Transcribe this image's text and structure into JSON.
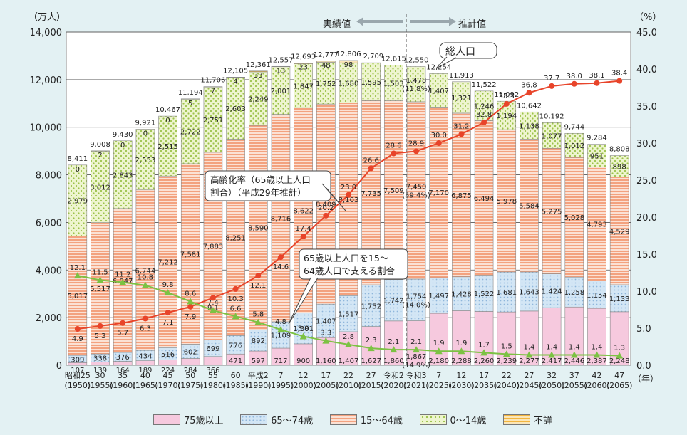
{
  "chart_data": {
    "type": "bar",
    "left_axis_unit": "（万人）",
    "right_axis_unit": "（%）",
    "year_suffix": "（年）",
    "ylim_left": [
      0,
      14000
    ],
    "ylim_right": [
      0,
      45
    ],
    "left_ticks": [
      "0",
      "2,000",
      "4,000",
      "6,000",
      "8,000",
      "10,000",
      "12,000",
      "14,000"
    ],
    "right_ticks": [
      "0.0",
      "5.0",
      "10.0",
      "15.0",
      "20.0",
      "25.0",
      "30.0",
      "35.0",
      "40.0",
      "45.0"
    ],
    "categories": [
      "昭和25",
      "30",
      "35",
      "40",
      "45",
      "50",
      "55",
      "60",
      "平成2",
      "7",
      "12",
      "17",
      "22",
      "27",
      "令和2",
      "令和3",
      "7",
      "12",
      "17",
      "22",
      "27",
      "32",
      "37",
      "42",
      "47"
    ],
    "years": [
      "(1950)",
      "(1955)",
      "(1960)",
      "(1965)",
      "(1970)",
      "(1975)",
      "(1980)",
      "(1985)",
      "(1990)",
      "(1995)",
      "(2000)",
      "(2005)",
      "(2010)",
      "(2015)",
      "(2020)",
      "(2021)",
      "(2025)",
      "(2030)",
      "(2035)",
      "(2040)",
      "(2045)",
      "(2050)",
      "(2055)",
      "(2060)",
      "(2065)"
    ],
    "series": [
      {
        "name": "75歳以上",
        "color": "#f4bfd8",
        "values": [
          107,
          139,
          164,
          189,
          224,
          284,
          366,
          471,
          597,
          717,
          900,
          1160,
          1407,
          1627,
          1860,
          1867,
          2180,
          2288,
          2260,
          2239,
          2277,
          2417,
          2446,
          2387,
          2248
        ],
        "labels": [
          "107",
          "139",
          "164",
          "189",
          "224",
          "284",
          "366",
          "471",
          "597",
          "717",
          "900",
          "1,160",
          "1,407",
          "1,627",
          "1,860",
          "1,867\n(14.9%)",
          "2,180",
          "2,288",
          "2,260",
          "2,239",
          "2,277",
          "2,417",
          "2,446",
          "2,387",
          "2,248"
        ]
      },
      {
        "name": "65～74歳",
        "color": "#c3dcf0",
        "values": [
          309,
          338,
          376,
          434,
          516,
          602,
          699,
          776,
          892,
          1109,
          1301,
          1407,
          1517,
          1752,
          1742,
          1754,
          1497,
          1428,
          1522,
          1681,
          1643,
          1424,
          1258,
          1154,
          1133
        ],
        "labels": [
          "309",
          "338",
          "376",
          "434",
          "516",
          "602",
          "699",
          "776",
          "892",
          "1,109",
          "1,301",
          "1,407",
          "1,517",
          "1,752",
          "1,742",
          "1,754\n(14.0%)",
          "1,497",
          "1,428",
          "1,522",
          "1,681",
          "1,643",
          "1,424",
          "1,258",
          "1,154",
          "1,133"
        ]
      },
      {
        "name": "15～64歳",
        "color": "#f6b49a",
        "values": [
          5017,
          5517,
          6047,
          6744,
          7212,
          7581,
          7883,
          8251,
          8590,
          8716,
          8622,
          8409,
          8103,
          7735,
          7509,
          7450,
          7170,
          6875,
          6494,
          5978,
          5584,
          5275,
          5028,
          4793,
          4529
        ],
        "labels": [
          "5,017",
          "5,517",
          "6,047",
          "6,744",
          "7,212",
          "7,581",
          "7,883",
          "8,251",
          "8,590",
          "8,716",
          "8,622",
          "8,409",
          "8,103",
          "7,735",
          "7,509",
          "7,450\n(59.4%)",
          "7,170",
          "6,875",
          "6,494",
          "5,978",
          "5,584",
          "5,275",
          "5,028",
          "4,793",
          "4,529"
        ]
      },
      {
        "name": "0～14歳",
        "color": "#dcebb2",
        "values": [
          2979,
          3012,
          2843,
          2553,
          2515,
          2722,
          2751,
          2603,
          2249,
          2001,
          1847,
          1752,
          1680,
          1595,
          1503,
          1478,
          1407,
          1321,
          1246,
          1194,
          1138,
          1077,
          1012,
          951,
          898
        ],
        "labels": [
          "2,979",
          "3,012",
          "2,843",
          "2,553",
          "2,515",
          "2,722",
          "2,751",
          "2,603",
          "2,249",
          "2,001",
          "1,847",
          "1,752",
          "1,680",
          "1,595",
          "1,503",
          "1,478\n(11.8%)",
          "1,407",
          "1,321",
          "1,246",
          "1,194",
          "1,138",
          "1,077",
          "1,012",
          "951",
          "898"
        ]
      },
      {
        "name": "不詳",
        "color": "#f7d27e",
        "values": [
          0,
          2,
          0,
          0,
          0,
          5,
          7,
          4,
          33,
          13,
          23,
          48,
          98,
          0,
          0,
          0,
          0,
          0,
          0,
          0,
          0,
          0,
          0,
          0,
          0
        ],
        "labels": [
          "0",
          "2",
          "0",
          "0",
          "0",
          "5",
          "7",
          "4",
          "33",
          "13",
          "23",
          "48",
          "98",
          "",
          "",
          "",
          "",
          "",
          "",
          "",
          "",
          "",
          "",
          "",
          ""
        ]
      }
    ],
    "total_labels": [
      "8,411",
      "9,008",
      "9,430",
      "9,921",
      "10,467",
      "11,194",
      "11,706",
      "12,105",
      "12,361",
      "12,557",
      "12,693",
      "12,777",
      "12,806",
      "12,709",
      "12,615",
      "12,550",
      "12,254",
      "11,913",
      "11,522",
      "11,092",
      "10,642",
      "10,192",
      "9,744",
      "9,284",
      "8,808"
    ],
    "lines": [
      {
        "name": "高齢化率（65歳以上人口割合）（平成29年推計）",
        "color": "#e8442a",
        "values": [
          4.9,
          5.3,
          5.7,
          6.3,
          7.1,
          7.9,
          9.1,
          10.3,
          12.1,
          14.6,
          17.4,
          20.2,
          23.0,
          26.6,
          28.6,
          28.9,
          30.0,
          31.2,
          32.8,
          35.3,
          36.8,
          37.7,
          38.0,
          38.1,
          38.4
        ],
        "labels": [
          "4.9",
          "5.3",
          "5.7",
          "6.3",
          "7.1",
          "7.9",
          "9.1",
          "10.3",
          "12.1",
          "14.6",
          "17.4",
          "20.2",
          "23.0",
          "26.6",
          "28.6",
          "28.9",
          "30.0",
          "31.2",
          "32.8",
          "35.3",
          "36.8",
          "37.7",
          "38.0",
          "38.1",
          "38.4"
        ]
      },
      {
        "name": "65歳以上人口を15～64歳人口で支える割合",
        "color": "#7cc243",
        "values": [
          12.1,
          11.5,
          11.2,
          10.8,
          9.8,
          8.6,
          7.4,
          6.6,
          5.8,
          4.8,
          3.9,
          3.3,
          2.8,
          2.3,
          2.1,
          2.1,
          1.9,
          1.9,
          1.7,
          1.5,
          1.4,
          1.4,
          1.4,
          1.4,
          1.3
        ],
        "labels": [
          "12.1",
          "11.5",
          "11.2",
          "10.8",
          "9.8",
          "8.6",
          "7.4",
          "6.6",
          "5.8",
          "4.8",
          "3.9",
          "3.3",
          "2.8",
          "2.3",
          "2.1",
          "2.1",
          "1.9",
          "1.9",
          "1.7",
          "1.5",
          "1.4",
          "1.4",
          "1.4",
          "1.4",
          "1.3"
        ]
      }
    ],
    "annotations": {
      "actual": "実績値",
      "estimate": "推計値",
      "total_population": "総人口",
      "aging_rate_line1": "高齢化率（65歳以上人口",
      "aging_rate_line2": "割合）（平成29年推計）",
      "support_line1": "65歳以上人口を15～",
      "support_line2": "64歳人口で支える割合"
    },
    "legend": [
      {
        "label": "75歳以上",
        "color": "#f4bfd8"
      },
      {
        "label": "65～74歳",
        "color": "#c3dcf0"
      },
      {
        "label": "15～64歳",
        "color": "#f6b49a"
      },
      {
        "label": "0～14歳",
        "color": "#dcebb2"
      },
      {
        "label": "不詳",
        "color": "#f7d27e"
      }
    ]
  }
}
